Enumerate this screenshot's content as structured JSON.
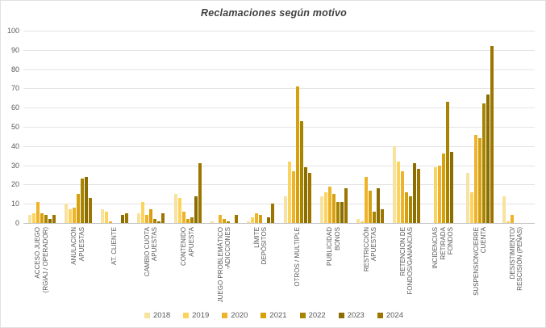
{
  "chart_title": "Reclamaciones según motivo",
  "chart_data": {
    "type": "bar",
    "title": "Reclamaciones según motivo",
    "xlabel": "",
    "ylabel": "",
    "ylim": [
      0,
      100
    ],
    "yticks": [
      0,
      10,
      20,
      30,
      40,
      50,
      60,
      70,
      80,
      90,
      100
    ],
    "grid": true,
    "legend_position": "bottom",
    "categories": [
      "ACCESO JUEGO (RGIAJ / OPERADOR)",
      "ANULACION APUESTAS",
      "AT. CLIENTE",
      "CAMBIO CUOTA APUESTAS",
      "CONTENIDO APUESTA",
      "JUEGO PROBLEMÁTICO -ADICCIONES",
      "LÍMITE DEPÓSITOS",
      "OTROS / MULTIPLE",
      "PUBLICIDAD BONOS",
      "RESTRICCIÓN APUESTAS",
      "RETENCION DE FONDOS/GANANCIAS",
      "INCIDENCIAS RETIRADA FONDOS",
      "SUSPENSION/CIERRE CUENTA",
      "DESISTIMIENTO/ RESCISIÓN (PEÑAS)"
    ],
    "category_label_lines": [
      [
        "ACCESO JUEGO",
        "(RGIAJ / OPERADOR)"
      ],
      [
        "ANULACION",
        "APUESTAS"
      ],
      [
        "AT. CLIENTE"
      ],
      [
        "CAMBIO CUOTA",
        "APUESTAS"
      ],
      [
        "CONTENIDO",
        "APUESTA"
      ],
      [
        "JUEGO PROBLEMÁTICO",
        "-ADICCIONES"
      ],
      [
        "LÍMITE",
        "DEPÓSITOS"
      ],
      [
        "OTROS / MULTIPLE"
      ],
      [
        "PUBLICIDAD",
        "BONOS"
      ],
      [
        "RESTRICCIÓN",
        "APUESTAS"
      ],
      [
        "RETENCION DE",
        "FONDOS/GANANCIAS"
      ],
      [
        "INCIDENCIAS",
        "RETIRADA",
        "FONDOS"
      ],
      [
        "SUSPENSION/CIERRE",
        "CUENTA"
      ],
      [
        "DESISTIMIENTO/",
        "RESCISIÓN (PEÑAS)"
      ]
    ],
    "series": [
      {
        "name": "2018",
        "color": "#F7E2A0",
        "values": [
          4,
          10,
          7,
          5,
          15,
          1,
          1,
          14,
          14,
          2,
          40,
          0,
          26,
          14
        ]
      },
      {
        "name": "2019",
        "color": "#FCD35C",
        "values": [
          5,
          7,
          6,
          11,
          13,
          0,
          3,
          32,
          16,
          1,
          32,
          29,
          16,
          1
        ]
      },
      {
        "name": "2020",
        "color": "#EEB22B",
        "values": [
          11,
          8,
          1,
          4,
          6,
          4,
          5,
          27,
          19,
          24,
          27,
          30,
          46,
          4
        ]
      },
      {
        "name": "2021",
        "color": "#D7A10E",
        "values": [
          5,
          15,
          0,
          7,
          2,
          2,
          4,
          71,
          15,
          17,
          16,
          36,
          44,
          0
        ]
      },
      {
        "name": "2022",
        "color": "#A88400",
        "values": [
          4,
          23,
          0,
          2,
          3,
          1,
          0,
          53,
          11,
          6,
          14,
          63,
          62,
          0
        ]
      },
      {
        "name": "2023",
        "color": "#8C6D00",
        "values": [
          2,
          24,
          4,
          1,
          14,
          0,
          3,
          29,
          11,
          18,
          31,
          37,
          67,
          0
        ]
      },
      {
        "name": "2024",
        "color": "#9D7600",
        "values": [
          4,
          13,
          5,
          5,
          31,
          4,
          10,
          26,
          18,
          7,
          28,
          0,
          92,
          0
        ]
      }
    ]
  }
}
